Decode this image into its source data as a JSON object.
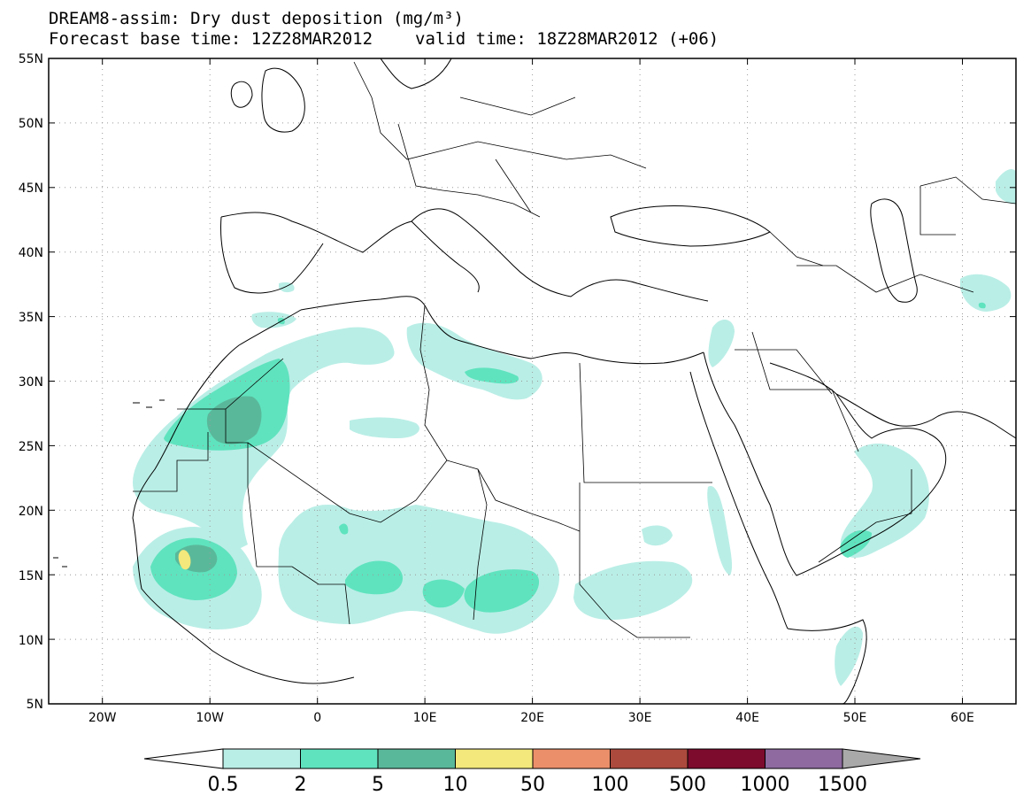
{
  "title": {
    "line1": "DREAM8-assim: Dry dust deposition (mg/m³)",
    "base_time": "Forecast base time: 12Z28MAR2012",
    "valid_time": "valid time: 18Z28MAR2012 (+06)"
  },
  "map": {
    "region": "North Africa, Europe, Middle East",
    "lat_range": [
      5,
      55
    ],
    "lon_range": [
      -25,
      65
    ],
    "lat_labels": [
      "55N",
      "50N",
      "45N",
      "40N",
      "35N",
      "30N",
      "25N",
      "20N",
      "15N",
      "10N",
      "5N"
    ],
    "lon_labels": [
      "20W",
      "10W",
      "0",
      "10E",
      "20E",
      "30E",
      "40E",
      "50E",
      "60E"
    ],
    "gridlines": "dotted"
  },
  "colorbar": {
    "labels": [
      "0.5",
      "2",
      "5",
      "10",
      "50",
      "100",
      "500",
      "1000",
      "1500"
    ],
    "colors": [
      "#b9eee6",
      "#5fe3be",
      "#5ab89a",
      "#f2e87b",
      "#eb8f6a",
      "#ac4a3d",
      "#7c0b2d",
      "#8e6aa0",
      "#a9a9a9"
    ]
  }
}
